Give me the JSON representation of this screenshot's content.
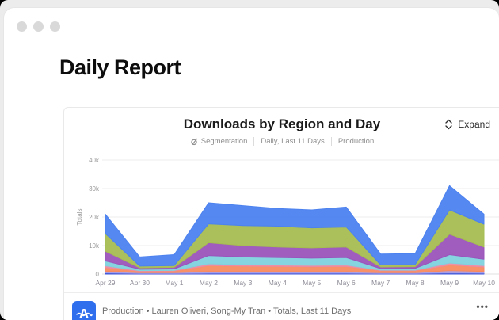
{
  "page": {
    "heading": "Daily Report"
  },
  "card": {
    "title": "Downloads by Region and Day",
    "meta": [
      {
        "icon": "segmentation-icon",
        "label": "Segmentation"
      },
      {
        "label": "Daily, Last 11 Days"
      },
      {
        "label": "Production"
      }
    ],
    "expand": {
      "icon": "expand-icon",
      "label": "Expand"
    },
    "footer": {
      "icon": "amplitude-logo-icon",
      "text": "Production • Lauren Oliveri, Song-My Tran • Totals, Last 11 Days",
      "more": "•••"
    }
  },
  "chart_data": {
    "type": "area",
    "stacked": true,
    "title": "Downloads by Region and Day",
    "xlabel": "",
    "ylabel": "Totals",
    "units": "downloads, values in thousands",
    "x": [
      "Apr 29",
      "Apr 30",
      "May 1",
      "May 2",
      "May 3",
      "May 4",
      "May 5",
      "May 6",
      "May 7",
      "May 8",
      "May 9",
      "May 10"
    ],
    "y_ticks": [
      0,
      10,
      20,
      30,
      40
    ],
    "y_tick_labels": [
      "0",
      "10k",
      "20k",
      "30k",
      "40k"
    ],
    "ylim": [
      0,
      40000
    ],
    "grid": "horizontal",
    "legend_position": "none",
    "series": [
      {
        "name": "layer-1-indigo",
        "color": "#3f57d9",
        "values_k": [
          0.4,
          0.2,
          0.2,
          0.3,
          0.3,
          0.3,
          0.3,
          0.3,
          0.2,
          0.2,
          0.4,
          0.3
        ]
      },
      {
        "name": "layer-2-lavender",
        "color": "#a89ce4",
        "values_k": [
          0.6,
          0.3,
          0.3,
          0.6,
          0.5,
          0.5,
          0.5,
          0.5,
          0.3,
          0.3,
          0.8,
          0.6
        ]
      },
      {
        "name": "layer-3-orange",
        "color": "#f88a60",
        "values_k": [
          1.3,
          0.5,
          0.6,
          2.1,
          2.0,
          1.9,
          1.8,
          1.9,
          0.7,
          0.7,
          2.0,
          1.6
        ]
      },
      {
        "name": "layer-4-pink",
        "color": "#ee8ba2",
        "values_k": [
          0.6,
          0.2,
          0.2,
          0.6,
          0.5,
          0.5,
          0.5,
          0.5,
          0.2,
          0.2,
          0.7,
          0.5
        ]
      },
      {
        "name": "layer-5-teal",
        "color": "#7fd2de",
        "values_k": [
          1.7,
          0.5,
          0.5,
          2.9,
          2.7,
          2.6,
          2.5,
          2.6,
          0.5,
          0.6,
          2.9,
          2.2
        ]
      },
      {
        "name": "layer-6-purple",
        "color": "#9b54bb",
        "values_k": [
          3.4,
          0.5,
          0.6,
          4.5,
          4.0,
          3.7,
          3.6,
          3.7,
          0.6,
          0.6,
          7.2,
          4.3
        ]
      },
      {
        "name": "layer-7-olive",
        "color": "#a6bd52",
        "values_k": [
          6.2,
          0.6,
          0.6,
          6.6,
          7.0,
          7.3,
          7.0,
          7.0,
          0.7,
          0.7,
          8.5,
          8.0
        ]
      },
      {
        "name": "layer-8-blue",
        "color": "#4c82ef",
        "values_k": [
          6.8,
          3.2,
          3.8,
          7.4,
          7.0,
          6.2,
          6.3,
          7.0,
          3.8,
          3.9,
          8.5,
          3.5
        ]
      }
    ],
    "totals_k": [
      21.0,
      6.0,
      6.8,
      25.0,
      24.0,
      23.0,
      22.5,
      23.5,
      7.0,
      7.2,
      31.0,
      21.0
    ]
  }
}
